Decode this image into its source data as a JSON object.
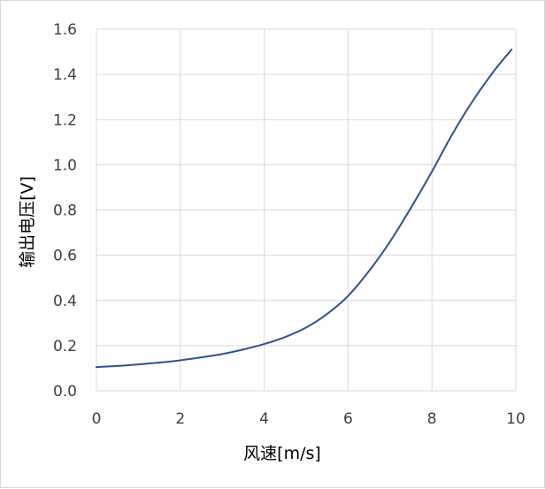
{
  "chart_data": {
    "type": "line",
    "title": "",
    "xlabel": "风速[m/s]",
    "ylabel": "输出电压[V]",
    "xlim": [
      0,
      10
    ],
    "ylim": [
      0,
      1.6
    ],
    "xticks": [
      "0",
      "2",
      "4",
      "6",
      "8",
      "10"
    ],
    "yticks": [
      "0.0",
      "0.2",
      "0.4",
      "0.6",
      "0.8",
      "1.0",
      "1.2",
      "1.4",
      "1.6"
    ],
    "grid": true,
    "legend": "none",
    "series": [
      {
        "color": "#2f528f",
        "x": [
          0,
          0.5,
          1,
          1.5,
          2,
          2.5,
          3,
          3.5,
          4,
          4.5,
          5,
          5.5,
          6,
          6.5,
          7,
          7.5,
          8,
          8.5,
          9,
          9.5,
          9.9
        ],
        "y": [
          0.105,
          0.11,
          0.117,
          0.125,
          0.135,
          0.148,
          0.163,
          0.183,
          0.207,
          0.238,
          0.28,
          0.34,
          0.42,
          0.53,
          0.66,
          0.81,
          0.97,
          1.14,
          1.29,
          1.42,
          1.51
        ]
      }
    ]
  }
}
